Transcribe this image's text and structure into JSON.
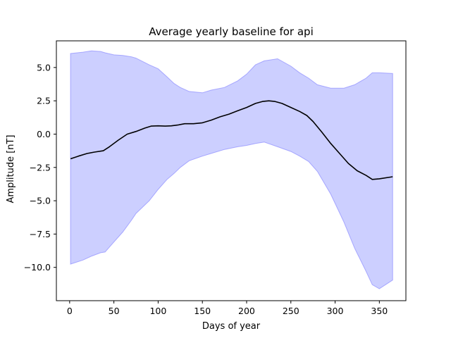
{
  "chart_data": {
    "type": "area",
    "title": "Average yearly baseline for api",
    "xlabel": "Days of year",
    "ylabel": "Amplitude [nT]",
    "xlim": [
      -15,
      380
    ],
    "ylim": [
      -12.5,
      7.0
    ],
    "xticks": [
      0,
      50,
      100,
      150,
      200,
      250,
      300,
      350
    ],
    "yticks": [
      -10.0,
      -7.5,
      -5.0,
      -2.5,
      0.0,
      2.5,
      5.0
    ],
    "xtick_labels": [
      "0",
      "50",
      "100",
      "150",
      "200",
      "250",
      "300",
      "350"
    ],
    "ytick_labels": [
      "−10.0",
      "−7.5",
      "−5.0",
      "−2.5",
      "0.0",
      "2.5",
      "5.0"
    ],
    "grid": false,
    "colors": {
      "line": "#000000",
      "band_fill": "#cccfff",
      "band_edge": "#8c8cff"
    },
    "series": [
      {
        "kind": "line",
        "x": [
          1,
          10,
          20,
          28,
          38,
          45,
          55,
          65,
          75,
          85,
          92,
          100,
          108,
          115,
          122,
          130,
          140,
          150,
          160,
          170,
          180,
          190,
          200,
          210,
          218,
          225,
          232,
          240,
          250,
          260,
          268,
          275,
          285,
          295,
          305,
          315,
          325,
          335,
          342,
          350,
          365
        ],
        "y": [
          -1.85,
          -1.65,
          -1.45,
          -1.35,
          -1.25,
          -0.95,
          -0.45,
          0.0,
          0.2,
          0.45,
          0.6,
          0.62,
          0.6,
          0.62,
          0.68,
          0.78,
          0.78,
          0.85,
          1.05,
          1.3,
          1.5,
          1.75,
          2.0,
          2.3,
          2.45,
          2.5,
          2.45,
          2.3,
          2.0,
          1.7,
          1.4,
          0.95,
          0.15,
          -0.7,
          -1.45,
          -2.2,
          -2.75,
          -3.1,
          -3.4,
          -3.35,
          -3.2
        ]
      },
      {
        "kind": "band",
        "x": [
          1,
          15,
          25,
          35,
          40,
          50,
          60,
          70,
          75,
          90,
          100,
          110,
          118,
          125,
          135,
          150,
          160,
          175,
          190,
          200,
          210,
          220,
          235,
          250,
          260,
          270,
          280,
          295,
          310,
          322,
          335,
          342,
          350,
          365
        ],
        "upper": [
          6.05,
          6.15,
          6.25,
          6.2,
          6.1,
          5.95,
          5.9,
          5.8,
          5.7,
          5.2,
          4.9,
          4.3,
          3.8,
          3.5,
          3.2,
          3.1,
          3.3,
          3.5,
          4.0,
          4.5,
          5.2,
          5.5,
          5.65,
          5.1,
          4.6,
          4.2,
          3.7,
          3.45,
          3.45,
          3.7,
          4.2,
          4.6,
          4.6,
          4.55
        ],
        "lower": [
          -9.75,
          -9.45,
          -9.15,
          -8.9,
          -8.85,
          -8.1,
          -7.35,
          -6.45,
          -5.95,
          -5.0,
          -4.15,
          -3.4,
          -2.95,
          -2.5,
          -2.0,
          -1.65,
          -1.45,
          -1.15,
          -0.95,
          -0.85,
          -0.7,
          -0.6,
          -0.95,
          -1.3,
          -1.65,
          -2.05,
          -2.8,
          -4.5,
          -6.6,
          -8.55,
          -10.3,
          -11.3,
          -11.6,
          -10.95
        ]
      }
    ]
  }
}
